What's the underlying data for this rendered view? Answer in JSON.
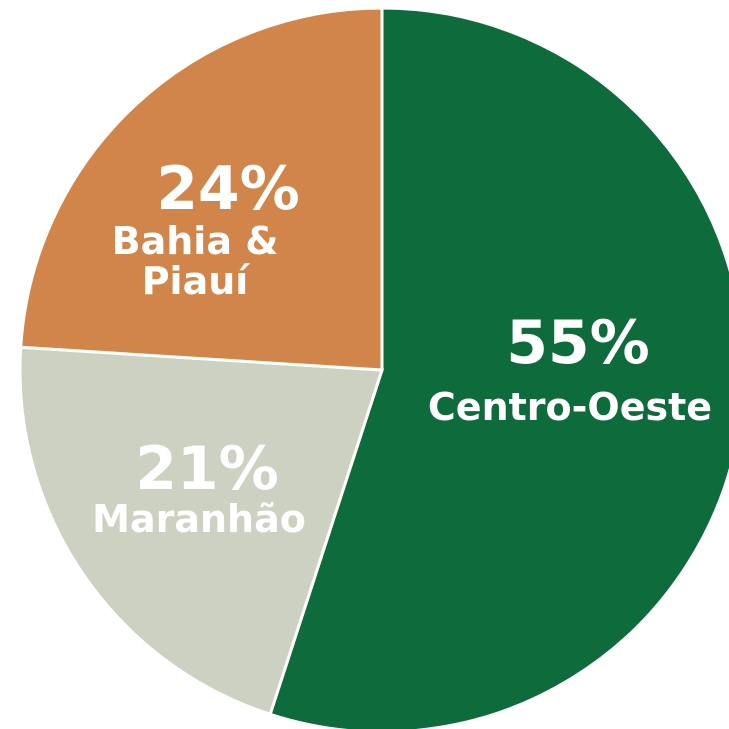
{
  "chart_data": {
    "type": "pie",
    "categories": [
      "Centro-Oeste",
      "Maranhão",
      "Bahia & Piauí"
    ],
    "values": [
      55,
      21,
      24
    ],
    "value_labels": [
      "55%",
      "21%",
      "24%"
    ],
    "colors": [
      "#0d6b3c",
      "#cdd1c1",
      "#d2854a"
    ]
  }
}
